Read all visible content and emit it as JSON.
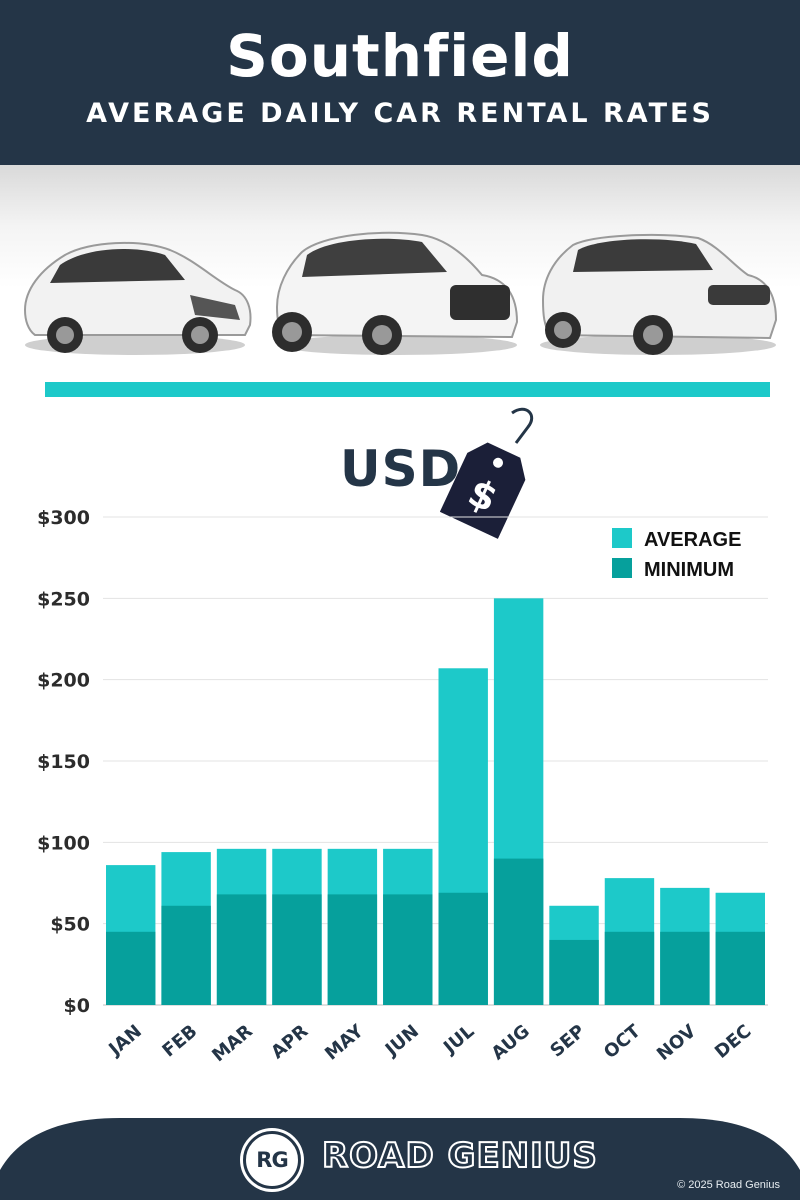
{
  "header": {
    "title": "Southfield",
    "subtitle": "AVERAGE DAILY CAR RENTAL RATES"
  },
  "currency_label": "USD",
  "tag_symbol": "$",
  "colors": {
    "header_bg": "#243547",
    "average": "#1dc9c9",
    "minimum": "#06a09c",
    "axis_text": "#243547"
  },
  "chart_data": {
    "type": "bar",
    "stacked": "overlay",
    "categories": [
      "JAN",
      "FEB",
      "MAR",
      "APR",
      "MAY",
      "JUN",
      "JUL",
      "AUG",
      "SEP",
      "OCT",
      "NOV",
      "DEC"
    ],
    "series": [
      {
        "name": "AVERAGE",
        "values": [
          86,
          94,
          96,
          96,
          96,
          96,
          207,
          250,
          61,
          78,
          72,
          69
        ]
      },
      {
        "name": "MINIMUM",
        "values": [
          45,
          61,
          68,
          68,
          68,
          68,
          69,
          90,
          40,
          45,
          45,
          45
        ]
      }
    ],
    "yticks": [
      "$0",
      "$50",
      "$100",
      "$150",
      "$200",
      "$250",
      "$300"
    ],
    "ylim": [
      0,
      300
    ],
    "grid": true,
    "legend_position": "top-right"
  },
  "footer": {
    "logo_text": "RG",
    "brand": "ROAD GENIUS",
    "copyright": "© 2025 Road Genius"
  }
}
